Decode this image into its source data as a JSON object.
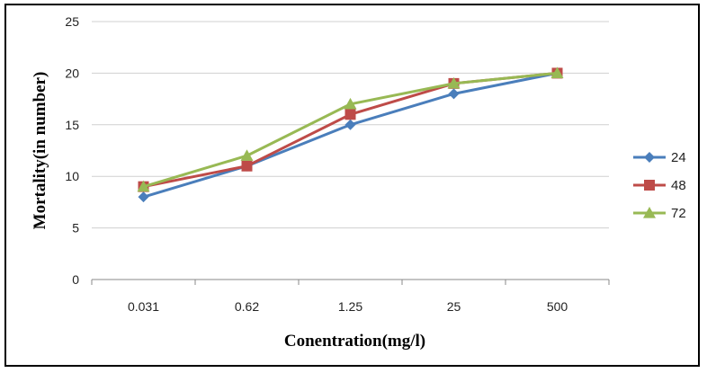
{
  "chart_data": {
    "type": "line",
    "categories": [
      "0.031",
      "0.62",
      "1.25",
      "25",
      "500"
    ],
    "series": [
      {
        "name": "24",
        "values": [
          8,
          11,
          15,
          18,
          20
        ],
        "color": "#4a7ebb",
        "marker": "diamond"
      },
      {
        "name": "48",
        "values": [
          9,
          11,
          16,
          19,
          20
        ],
        "color": "#be4b48",
        "marker": "square"
      },
      {
        "name": "72",
        "values": [
          9,
          12,
          17,
          19,
          20
        ],
        "color": "#98b954",
        "marker": "triangle"
      }
    ],
    "xlabel": "Conentration(mg/l)",
    "ylabel": "Mortality(in number)",
    "ylim": [
      0,
      25
    ],
    "yticks": [
      0,
      5,
      10,
      15,
      20,
      25
    ],
    "grid": true,
    "legend": "right"
  }
}
